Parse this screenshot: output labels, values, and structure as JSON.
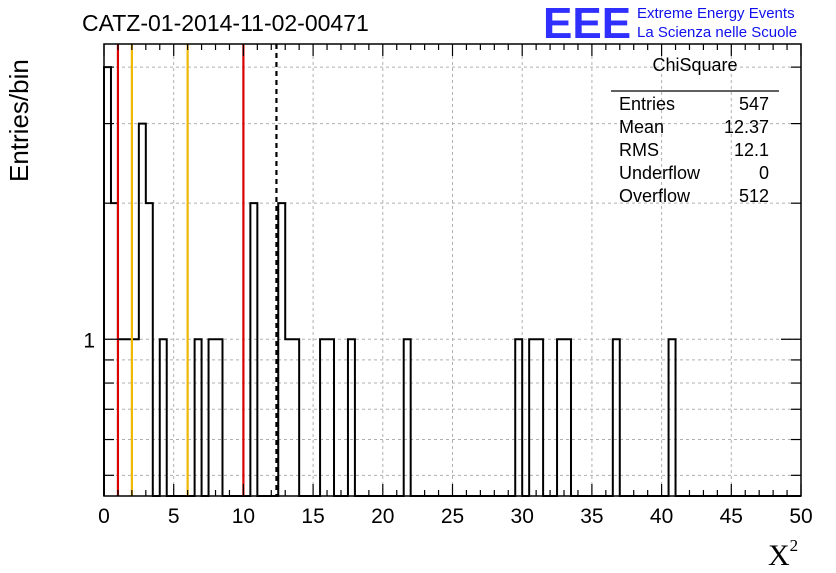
{
  "title": "CATZ-01-2014-11-02-00471",
  "logo": {
    "mark": "EEE",
    "line1": "Extreme Energy Events",
    "line2": "La Scienza nelle Scuole",
    "color": "#2f2fff"
  },
  "chart_data": {
    "type": "bar",
    "histogram": true,
    "xlabel": "X",
    "xlabel_sup": "2",
    "ylabel": "Entries/bin",
    "xlim": [
      0,
      50
    ],
    "ylim": [
      0.45,
      4.5
    ],
    "yscale": "log",
    "grid": true,
    "bin_width": 0.5,
    "x_ticks": [
      "0",
      "5",
      "10",
      "15",
      "20",
      "25",
      "30",
      "35",
      "40",
      "45",
      "50"
    ],
    "y_ticks": [
      "1"
    ],
    "bins": [
      {
        "x": 0.0,
        "count": 4
      },
      {
        "x": 0.5,
        "count": 2
      },
      {
        "x": 1.0,
        "count": 1
      },
      {
        "x": 1.5,
        "count": 1
      },
      {
        "x": 2.0,
        "count": 1
      },
      {
        "x": 2.5,
        "count": 3
      },
      {
        "x": 3.0,
        "count": 2
      },
      {
        "x": 3.5,
        "count": 0
      },
      {
        "x": 4.0,
        "count": 1
      },
      {
        "x": 6.5,
        "count": 1
      },
      {
        "x": 7.5,
        "count": 1
      },
      {
        "x": 8.0,
        "count": 1
      },
      {
        "x": 10.0,
        "count": 0
      },
      {
        "x": 10.5,
        "count": 2
      },
      {
        "x": 12.5,
        "count": 2
      },
      {
        "x": 13.0,
        "count": 1
      },
      {
        "x": 13.5,
        "count": 1
      },
      {
        "x": 15.5,
        "count": 1
      },
      {
        "x": 16.0,
        "count": 1
      },
      {
        "x": 17.5,
        "count": 1
      },
      {
        "x": 21.5,
        "count": 1
      },
      {
        "x": 29.5,
        "count": 1
      },
      {
        "x": 30.5,
        "count": 1
      },
      {
        "x": 31.0,
        "count": 1
      },
      {
        "x": 32.5,
        "count": 1
      },
      {
        "x": 33.0,
        "count": 1
      },
      {
        "x": 36.5,
        "count": 1
      },
      {
        "x": 40.5,
        "count": 1
      }
    ],
    "reference_lines": [
      {
        "x": 1.0,
        "color": "#dd0000",
        "style": "solid"
      },
      {
        "x": 2.0,
        "color": "#f0b800",
        "style": "solid"
      },
      {
        "x": 6.0,
        "color": "#f0b800",
        "style": "solid"
      },
      {
        "x": 10.0,
        "color": "#dd0000",
        "style": "solid"
      },
      {
        "x": 12.37,
        "color": "#000000",
        "style": "dashed"
      }
    ],
    "stats_box": {
      "title": "ChiSquare",
      "rows": [
        {
          "label": "Entries",
          "value": "547"
        },
        {
          "label": "Mean",
          "value": "12.37"
        },
        {
          "label": "RMS",
          "value": "12.1"
        },
        {
          "label": "Underflow",
          "value": "0"
        },
        {
          "label": "Overflow",
          "value": "512"
        }
      ]
    }
  }
}
